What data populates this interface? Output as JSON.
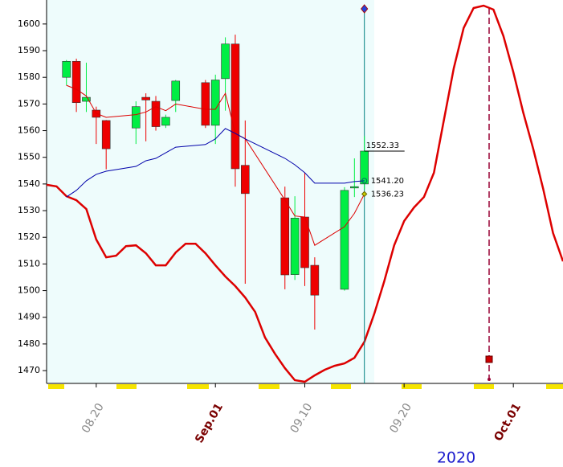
{
  "chart_data": {
    "type": "candlestick",
    "x": [
      "2020-08-17",
      "2020-08-18",
      "2020-08-19",
      "2020-08-20",
      "2020-08-21",
      "2020-08-24",
      "2020-08-25",
      "2020-08-26",
      "2020-08-27",
      "2020-08-28",
      "2020-08-31",
      "2020-09-01",
      "2020-09-02",
      "2020-09-03",
      "2020-09-04",
      "2020-09-08",
      "2020-09-09",
      "2020-09-10",
      "2020-09-11",
      "2020-09-14",
      "2020-09-15",
      "2020-09-16"
    ],
    "open": [
      1580,
      1586,
      1571,
      1567.7,
      1563.8,
      1561,
      1572.5,
      1571,
      1562,
      1571.3,
      1578,
      1562,
      1579.5,
      1592.5,
      1547,
      1534.8,
      1506,
      1527.6,
      1509.5,
      1500.5,
      1538.5,
      1540
    ],
    "high": [
      1586.5,
      1587,
      1585.5,
      1569,
      1564,
      1571,
      1574,
      1573,
      1566,
      1579,
      1579,
      1581,
      1595,
      1596,
      1563.8,
      1539,
      1535.4,
      1544.2,
      1512.5,
      1538.8,
      1549.6,
      1558
    ],
    "low": [
      1577,
      1567,
      1567,
      1555,
      1545.5,
      1555,
      1556,
      1560,
      1561,
      1567,
      1561,
      1555,
      1567.5,
      1539,
      1502.6,
      1500.5,
      1504,
      1501.7,
      1485.4,
      1500,
      1535.1,
      1538
    ],
    "close": [
      1586,
      1570.5,
      1572.5,
      1565,
      1553.2,
      1569,
      1571.5,
      1561.5,
      1565,
      1578.6,
      1562,
      1579,
      1592.5,
      1545.7,
      1536.4,
      1505.9,
      1527.2,
      1508.6,
      1498.3,
      1537.6,
      1539,
      1552.33
    ],
    "up_color": "#00ee44",
    "down_color": "#ee0000",
    "lines": [
      {
        "color": "#dd0000",
        "values": [
          1577,
          1575.5,
          1573,
          1566.5,
          1565,
          1566,
          1567,
          1569,
          1567.5,
          1570,
          1568,
          1568,
          1574,
          1559,
          1557,
          1534,
          1528,
          1527.6,
          1517,
          1524,
          1529,
          1536.23
        ]
      },
      {
        "color": "#0000aa",
        "values": [
          1535.1,
          1537.6,
          1541.2,
          1543.6,
          1544.8,
          1546.6,
          1548.7,
          1549.6,
          1551.7,
          1553.8,
          1554.8,
          1556.9,
          1560.8,
          1559,
          1556.9,
          1549.6,
          1547.2,
          1544.2,
          1540.3,
          1540.3,
          1540.9,
          1541.2
        ]
      }
    ],
    "forecast": {
      "color": "#dd0000",
      "x": [
        "2020-08-15",
        "2020-08-16",
        "2020-08-17",
        "2020-08-18",
        "2020-08-19",
        "2020-08-20",
        "2020-08-21",
        "2020-08-22",
        "2020-08-23",
        "2020-08-24",
        "2020-08-25",
        "2020-08-26",
        "2020-08-27",
        "2020-08-28",
        "2020-08-29",
        "2020-08-30",
        "2020-08-31",
        "2020-09-01",
        "2020-09-02",
        "2020-09-03",
        "2020-09-04",
        "2020-09-05",
        "2020-09-06",
        "2020-09-07",
        "2020-09-08",
        "2020-09-09",
        "2020-09-10",
        "2020-09-11",
        "2020-09-12",
        "2020-09-13",
        "2020-09-14",
        "2020-09-15",
        "2020-09-16",
        "2020-09-17",
        "2020-09-18",
        "2020-09-19",
        "2020-09-20",
        "2020-09-21",
        "2020-09-22",
        "2020-09-23",
        "2020-09-24",
        "2020-09-25",
        "2020-09-26",
        "2020-09-27",
        "2020-09-28",
        "2020-09-29",
        "2020-09-30",
        "2020-10-01",
        "2020-10-02",
        "2020-10-03",
        "2020-10-04",
        "2020-10-05",
        "2020-10-06"
      ],
      "values": [
        1539.7,
        1539.1,
        1535.4,
        1533.9,
        1530.6,
        1519.2,
        1512.5,
        1513.1,
        1516.7,
        1517,
        1514,
        1509.5,
        1509.5,
        1514.3,
        1517.6,
        1517.6,
        1514,
        1509.5,
        1505.3,
        1501.7,
        1497.4,
        1492,
        1482.4,
        1476.3,
        1470.9,
        1466.4,
        1465.8,
        1468.2,
        1470.3,
        1471.8,
        1472.7,
        1474.8,
        1480.8,
        1491.4,
        1503.5,
        1517,
        1526.1,
        1531.2,
        1535.1,
        1544.2,
        1563.8,
        1583.4,
        1598.5,
        1606,
        1606.9,
        1605.4,
        1595.5,
        1581.9,
        1566.8,
        1553.2,
        1538.2,
        1521.6,
        1511
      ]
    },
    "price_labels": [
      {
        "value": 1552.33,
        "label": "1552.33"
      },
      {
        "value": 1541.2,
        "label": "1541.20"
      },
      {
        "value": 1536.23,
        "label": "1536.23"
      }
    ],
    "year": "2020",
    "xlim": [
      "2020-08-15",
      "2020-10-06"
    ],
    "xticks": [
      {
        "value": "2020-08-20",
        "label": "08.20",
        "color": "#8a8a8a"
      },
      {
        "value": "2020-09-01",
        "label": "Sep.01",
        "color": "#7a0000"
      },
      {
        "value": "2020-09-10",
        "label": "09.10",
        "color": "#8a8a8a"
      },
      {
        "value": "2020-09-20",
        "label": "09.20",
        "color": "#8a8a8a"
      },
      {
        "value": "2020-10-01",
        "label": "Oct.01",
        "color": "#7a0000"
      }
    ],
    "ylim": [
      1465.2,
      1609
    ],
    "yticks": [
      1470,
      1480,
      1490,
      1500,
      1510,
      1520,
      1530,
      1540,
      1550,
      1560,
      1570,
      1580,
      1590,
      1600
    ]
  }
}
